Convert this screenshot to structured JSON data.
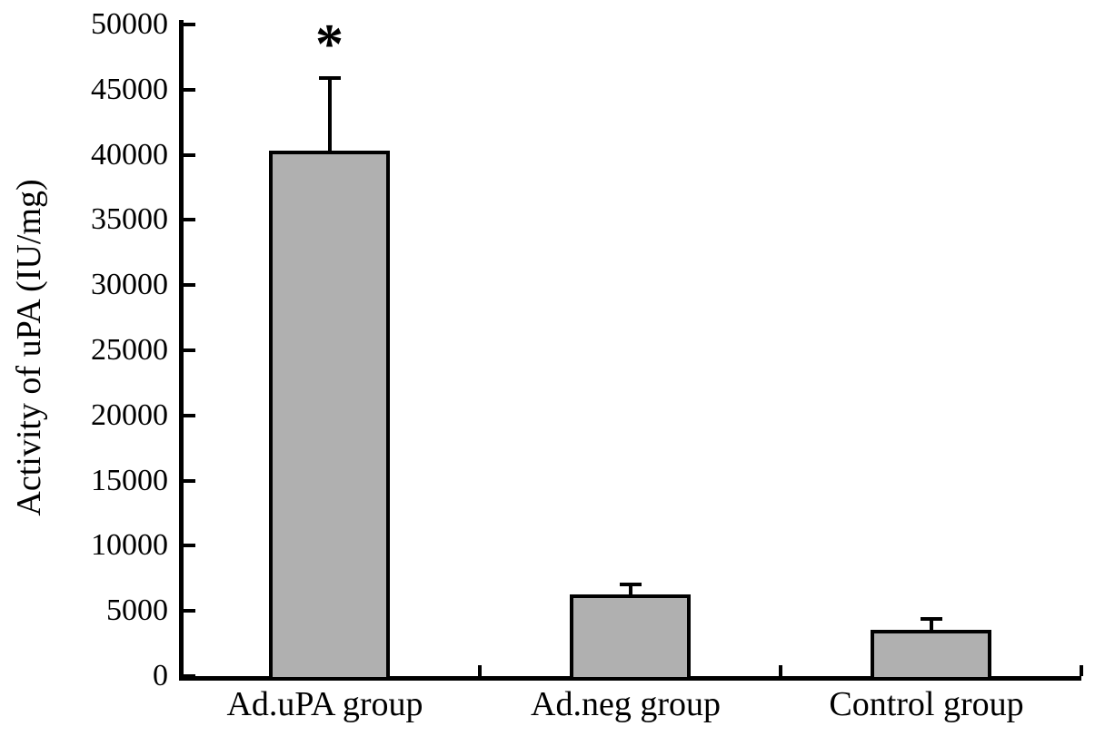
{
  "figure": {
    "background_color": "#ffffff",
    "axis_color": "#000000"
  },
  "chart_data": {
    "type": "bar",
    "title": "",
    "xlabel": "",
    "ylabel": "Activity of uPA (IU/mg)",
    "categories": [
      "Ad.uPA group",
      "Ad.neg group",
      "Control group"
    ],
    "values": [
      40200,
      6100,
      3400
    ],
    "errors_plus": [
      5700,
      900,
      1000
    ],
    "significance_markers": [
      "*",
      "",
      ""
    ],
    "ylim": [
      0,
      50000
    ],
    "ytick_step": 5000,
    "ytick_labels": [
      "0",
      "5000",
      "10000",
      "15000",
      "20000",
      "25000",
      "30000",
      "35000",
      "40000",
      "45000",
      "50000"
    ],
    "bar_fill_color": "#b0b0b0",
    "bar_border_color": "#000000",
    "error_bar_color": "#000000",
    "grid": false,
    "legend_position": "none",
    "tick_direction": "in"
  }
}
